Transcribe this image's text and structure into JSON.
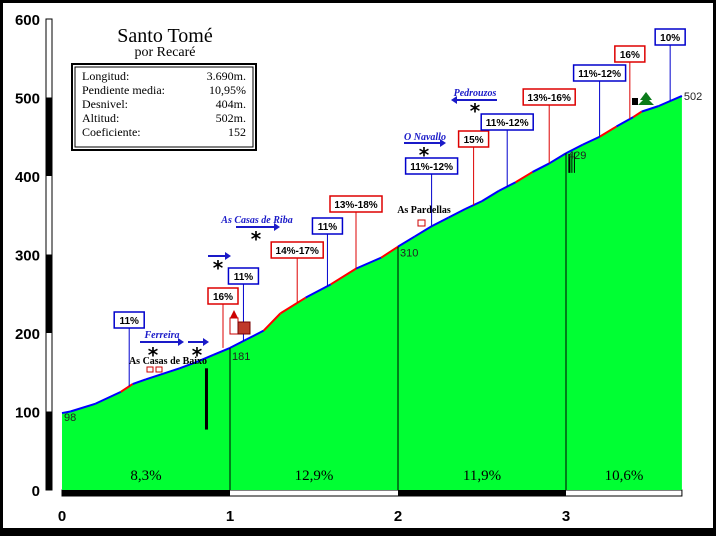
{
  "chart_data": {
    "type": "area",
    "title": "Santo Tomé",
    "subtitle": "por Recaré",
    "xlim": [
      0,
      3.69
    ],
    "ylim": [
      0,
      600
    ],
    "x_ticks": [
      "0",
      "1",
      "2",
      "3"
    ],
    "y_ticks": [
      "0",
      "100",
      "200",
      "300",
      "400",
      "500",
      "600"
    ],
    "grid": false,
    "colors": {
      "fill": "#00ff33",
      "profile_easy": "#0000ff",
      "profile_hard": "#ff0000",
      "box_easy_border": "#0000cc",
      "box_hard_border": "#dd0000",
      "background": "#ffffff"
    },
    "profile": {
      "x": [
        0,
        0.05,
        0.2,
        0.35,
        0.42,
        0.5,
        0.6,
        0.7,
        0.8,
        0.9,
        1.0,
        1.1,
        1.2,
        1.3,
        1.45,
        1.6,
        1.75,
        1.9,
        2.0,
        2.1,
        2.2,
        2.3,
        2.4,
        2.5,
        2.6,
        2.7,
        2.8,
        2.9,
        3.0,
        3.1,
        3.2,
        3.3,
        3.4,
        3.45,
        3.55,
        3.69
      ],
      "y": [
        98,
        100,
        110,
        125,
        135,
        141,
        148,
        155,
        163,
        172,
        181,
        192,
        203,
        225,
        245,
        262,
        282,
        296,
        310,
        323,
        336,
        347,
        358,
        368,
        381,
        392,
        405,
        416,
        429,
        440,
        450,
        463,
        475,
        482,
        489,
        502
      ]
    },
    "segments": [
      {
        "label": "8,3%"
      },
      {
        "label": "12,9%"
      },
      {
        "label": "11,9%"
      },
      {
        "label": "10,6%"
      }
    ],
    "km_altitudes": [
      {
        "x": 0,
        "label": "98"
      },
      {
        "x": 1,
        "label": "181"
      },
      {
        "x": 2,
        "label": "310"
      },
      {
        "x": 3,
        "label": "429"
      },
      {
        "x": 3.69,
        "label": "502"
      }
    ],
    "gradient_callouts": [
      {
        "label": "11%",
        "x": 0.4,
        "color": "blue"
      },
      {
        "label": "16%",
        "x": 1.0,
        "color": "red"
      },
      {
        "label": "11%",
        "x": 1.08,
        "color": "blue"
      },
      {
        "label": "14%-17%",
        "x": 1.4,
        "color": "red"
      },
      {
        "label": "11%",
        "x": 1.58,
        "color": "blue"
      },
      {
        "label": "13%-18%",
        "x": 1.75,
        "color": "red"
      },
      {
        "label": "11%-12%",
        "x": 2.2,
        "color": "blue"
      },
      {
        "label": "15%",
        "x": 2.45,
        "color": "red"
      },
      {
        "label": "11%-12%",
        "x": 2.65,
        "color": "blue"
      },
      {
        "label": "13%-16%",
        "x": 2.9,
        "color": "red"
      },
      {
        "label": "11%-12%",
        "x": 3.2,
        "color": "blue"
      },
      {
        "label": "16%",
        "x": 3.38,
        "color": "red"
      },
      {
        "label": "10%",
        "x": 3.62,
        "color": "blue"
      }
    ],
    "places": [
      {
        "name": "As Casas de Baixo",
        "x": 0.55
      },
      {
        "name": "Ferreira",
        "x": 0.55
      },
      {
        "name": "As Casas de Riba",
        "x": 1.15
      },
      {
        "name": "As Pardellas",
        "x": 2.15
      },
      {
        "name": "O Navallo",
        "x": 2.15
      },
      {
        "name": "Pedrouzos",
        "x": 2.5
      }
    ]
  },
  "stats": {
    "rows": [
      {
        "label": "Longitud:",
        "value": "3.690m."
      },
      {
        "label": "Pendiente media:",
        "value": "10,95%"
      },
      {
        "label": "Desnivel:",
        "value": "404m."
      },
      {
        "label": "Altitud:",
        "value": "502m."
      },
      {
        "label": "Coeficiente:",
        "value": "152"
      }
    ]
  }
}
